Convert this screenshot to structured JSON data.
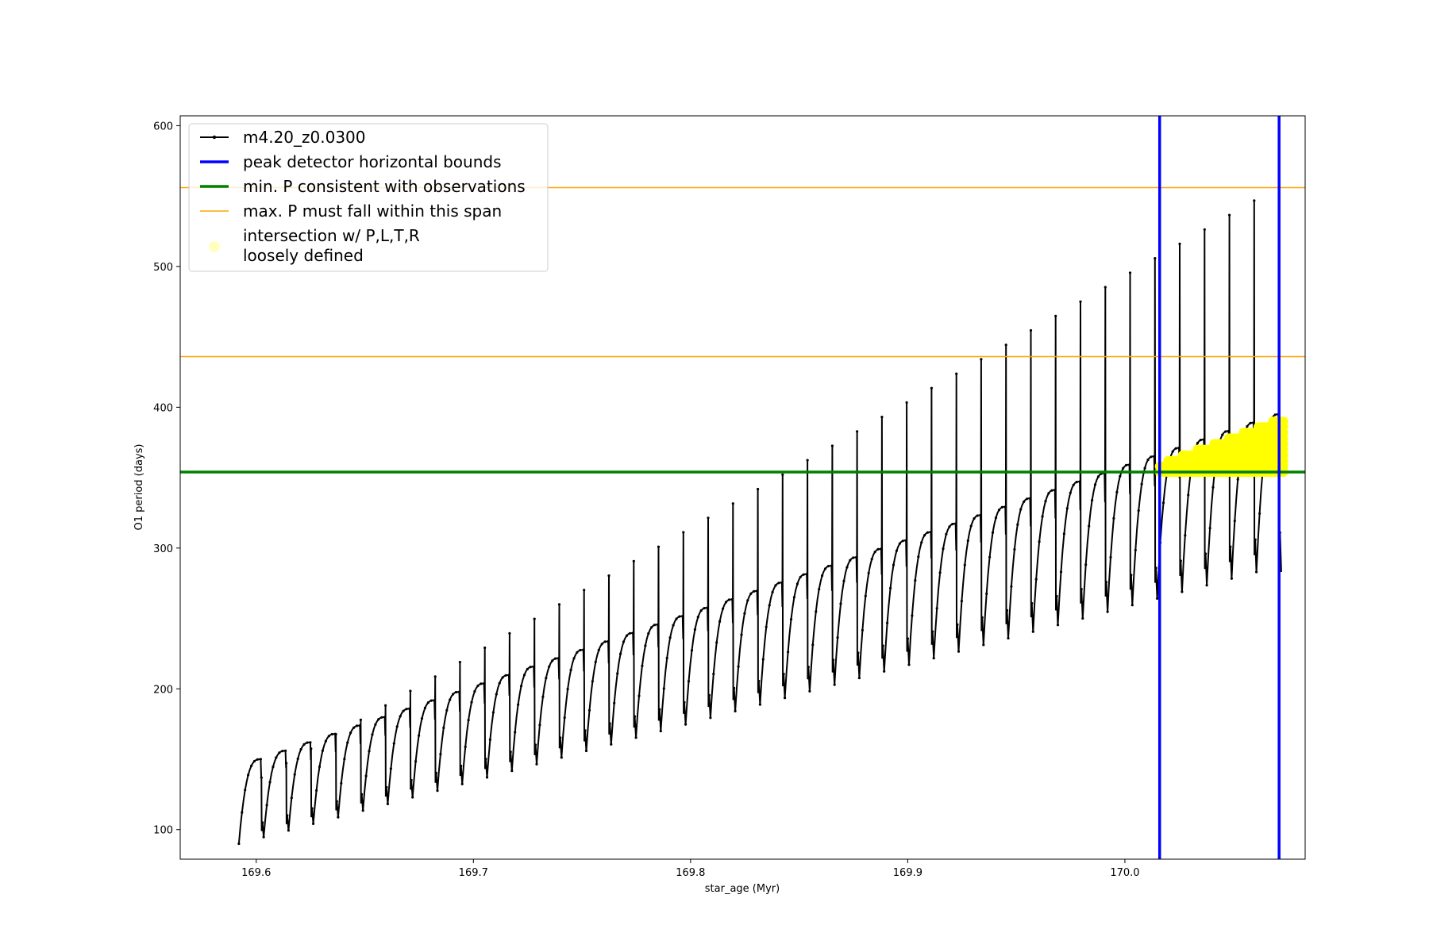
{
  "chart_data": {
    "type": "line",
    "xlabel": "star_age (Myr)",
    "ylabel": "O1 period (days)",
    "xlim": [
      169.565,
      170.083
    ],
    "ylim": [
      79,
      607
    ],
    "x_ticks": [
      169.6,
      169.7,
      169.8,
      169.9,
      170.0
    ],
    "x_tick_labels": [
      "169.6",
      "169.7",
      "169.8",
      "169.9",
      "170.0"
    ],
    "y_ticks": [
      100,
      200,
      300,
      400,
      500,
      600
    ],
    "y_tick_labels": [
      "100",
      "200",
      "300",
      "400",
      "500",
      "600"
    ],
    "grid": false,
    "legend_placement": "top-left",
    "series": [
      {
        "name": "m4.20_z0.0300",
        "style": "line-with-dot-markers",
        "color": "#000000",
        "description_cycles": {
          "x_start": 169.592,
          "x_end": 170.072,
          "cycle_count": 42,
          "trough_low_start": 90,
          "trough_low_end": 283,
          "envelope_high_start": 150,
          "envelope_high_end": 395,
          "spike_high_start": 137,
          "spike_high_end": 557
        }
      },
      {
        "name": "peak detector horizontal bounds",
        "type": "vline",
        "color": "#0000ff",
        "x": [
          170.016,
          170.071
        ]
      },
      {
        "name": "min. P consistent with observations",
        "type": "hline",
        "color": "#008000",
        "y": 354
      },
      {
        "name": "max. P must fall within this span",
        "type": "hline",
        "color": "#ffa500",
        "y": [
          436,
          556
        ]
      },
      {
        "name": "intersection w/ P,L,T,R\nloosely defined",
        "type": "scatter",
        "color": "#ffff00",
        "x_range": [
          170.016,
          170.073
        ],
        "y_low": 354,
        "y_high_start": 360,
        "y_high_end": 393
      }
    ]
  }
}
